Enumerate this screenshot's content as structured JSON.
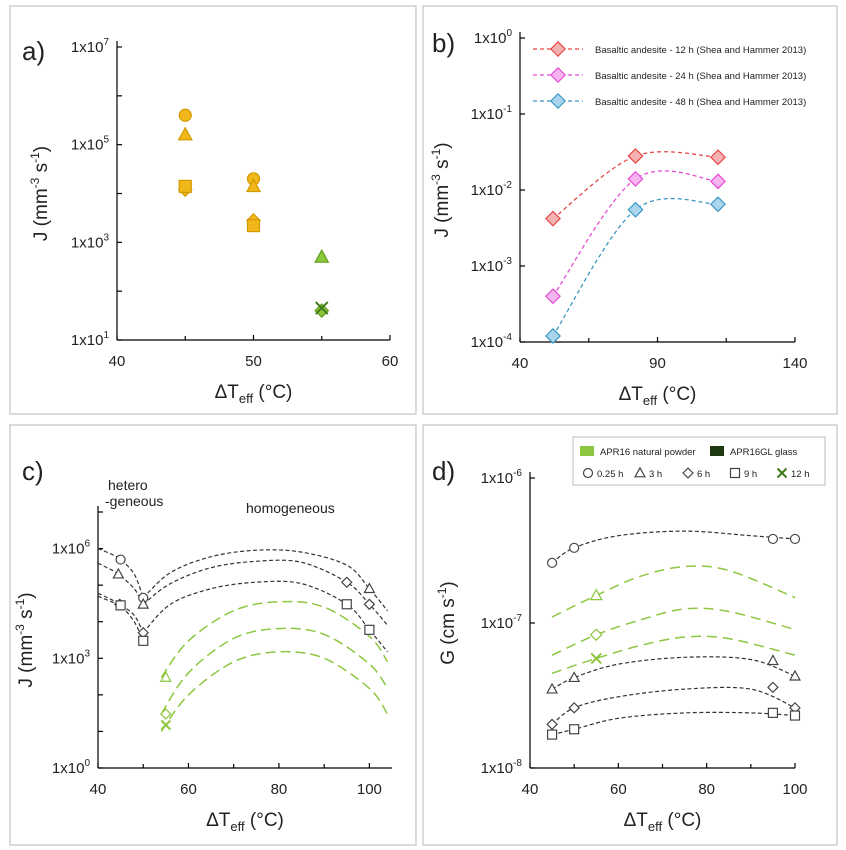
{
  "chart_data": [
    {
      "panel": "a)",
      "type": "scatter",
      "xlabel": "ΔT",
      "xlabel_sub": "eff",
      "xlabel_unit": " (°C)",
      "ylabel": "J (mm",
      "ylabel_sup1": "-3",
      "ylabel_mid": " s",
      "ylabel_sup2": "-1",
      "ylabel_end": ")",
      "xlim": [
        40,
        60
      ],
      "ylim_log10": [
        1,
        7
      ],
      "yscale": "log",
      "xticks": [
        40,
        50,
        60
      ],
      "yticks": [
        {
          "exp": 1,
          "label": "1x10",
          "sup": "1"
        },
        {
          "exp": 3,
          "label": "1x10",
          "sup": "3"
        },
        {
          "exp": 5,
          "label": "1x10",
          "sup": "5"
        },
        {
          "exp": 7,
          "label": "1x10",
          "sup": "7"
        }
      ],
      "series": [
        {
          "marker": "circle",
          "color": "#f2b71a",
          "stroke": "#d39a00",
          "points": [
            {
              "x": 45,
              "y": 400000
            },
            {
              "x": 50,
              "y": 20000
            }
          ]
        },
        {
          "marker": "triangle",
          "color": "#f2b71a",
          "stroke": "#d39a00",
          "points": [
            {
              "x": 45,
              "y": 160000
            },
            {
              "x": 50,
              "y": 14000
            }
          ]
        },
        {
          "marker": "diamond",
          "color": "#f2b71a",
          "stroke": "#d39a00",
          "points": [
            {
              "x": 45,
              "y": 12000
            },
            {
              "x": 50,
              "y": 2800
            }
          ]
        },
        {
          "marker": "square",
          "color": "#f2b71a",
          "stroke": "#d39a00",
          "points": [
            {
              "x": 45,
              "y": 14000
            },
            {
              "x": 50,
              "y": 2200
            }
          ]
        },
        {
          "marker": "triangle",
          "color": "#8dc63f",
          "stroke": "#5f9d1a",
          "points": [
            {
              "x": 55,
              "y": 500
            }
          ]
        },
        {
          "marker": "diamond",
          "color": "#8dc63f",
          "stroke": "#5f9d1a",
          "points": [
            {
              "x": 55,
              "y": 40
            }
          ]
        },
        {
          "marker": "x",
          "color": "#3f7a1a",
          "stroke": "#3f7a1a",
          "points": [
            {
              "x": 55,
              "y": 45
            }
          ]
        }
      ]
    },
    {
      "panel": "b)",
      "type": "line",
      "xlabel": "ΔT",
      "xlabel_sub": "eff",
      "xlabel_unit": " (°C)",
      "ylabel": "J (mm",
      "ylabel_sup1": "-3",
      "ylabel_mid": " s",
      "ylabel_sup2": "-1",
      "ylabel_end": ")",
      "xlim": [
        40,
        140
      ],
      "ylim_log10": [
        -4,
        0
      ],
      "yscale": "log",
      "xticks": [
        40,
        90,
        140
      ],
      "yticks": [
        {
          "exp": -4,
          "label": "1x10",
          "sup": "-4"
        },
        {
          "exp": -3,
          "label": "1x10",
          "sup": "-3"
        },
        {
          "exp": -2,
          "label": "1x10",
          "sup": "-2"
        },
        {
          "exp": -1,
          "label": "1x10",
          "sup": "-1"
        },
        {
          "exp": 0,
          "label": "1x10",
          "sup": "0"
        }
      ],
      "legend_position": "top-right",
      "series": [
        {
          "name": "Basaltic andesite - 12 h (Shea and Hammer 2013)",
          "color": "#e84646",
          "fill": "#f6b2b2",
          "x": [
            52,
            82,
            112
          ],
          "y": [
            0.0042,
            0.028,
            0.027
          ]
        },
        {
          "name": "Basaltic andesite - 24 h (Shea and Hammer 2013)",
          "color": "#e64ad3",
          "fill": "#f4b4ee",
          "x": [
            52,
            82,
            112
          ],
          "y": [
            0.0004,
            0.014,
            0.013
          ]
        },
        {
          "name": "Basaltic andesite - 48 h (Shea and Hammer 2013)",
          "color": "#3b96c4",
          "fill": "#a9d6ec",
          "x": [
            52,
            82,
            112
          ],
          "y": [
            0.00012,
            0.0055,
            0.0065
          ]
        }
      ]
    },
    {
      "panel": "c)",
      "type": "scatter",
      "xlabel": "ΔT",
      "xlabel_sub": "eff",
      "xlabel_unit": " (°C)",
      "ylabel": "J (mm",
      "ylabel_sup1": "-3",
      "ylabel_mid": " s",
      "ylabel_sup2": "-1",
      "ylabel_end": ")",
      "xlim": [
        40,
        105
      ],
      "ylim_log10": [
        0,
        7
      ],
      "yscale": "log",
      "xticks": [
        40,
        60,
        80,
        100
      ],
      "yticks": [
        {
          "exp": 0,
          "label": "1x10",
          "sup": "0"
        },
        {
          "exp": 3,
          "label": "1x10",
          "sup": "3"
        },
        {
          "exp": 6,
          "label": "1x10",
          "sup": "6"
        }
      ],
      "annotations": {
        "heterogeneous_line1": "hetero",
        "heterogeneous_line2": "-geneous",
        "homogeneous": "homogeneous"
      },
      "black_points": [
        {
          "marker": "circle",
          "x": 45,
          "y": 500000
        },
        {
          "marker": "circle",
          "x": 50,
          "y": 45000
        },
        {
          "marker": "triangle",
          "x": 44.5,
          "y": 200000
        },
        {
          "marker": "triangle",
          "x": 50,
          "y": 30000
        },
        {
          "marker": "triangle",
          "x": 100,
          "y": 80000
        },
        {
          "marker": "diamond",
          "x": 44.8,
          "y": 30000
        },
        {
          "marker": "diamond",
          "x": 50,
          "y": 5000
        },
        {
          "marker": "diamond",
          "x": 95,
          "y": 120000
        },
        {
          "marker": "diamond",
          "x": 100,
          "y": 30000
        },
        {
          "marker": "square",
          "x": 45,
          "y": 28000
        },
        {
          "marker": "square",
          "x": 50,
          "y": 3000
        },
        {
          "marker": "square",
          "x": 95,
          "y": 30000
        },
        {
          "marker": "square",
          "x": 100,
          "y": 6000
        }
      ],
      "green_points": [
        {
          "marker": "triangle",
          "x": 55,
          "y": 300
        },
        {
          "marker": "diamond",
          "x": 55,
          "y": 30
        },
        {
          "marker": "x",
          "x": 55,
          "y": 15
        }
      ],
      "black_hetero_curves": [
        [
          [
            40,
            1000000
          ],
          [
            43,
            700000
          ],
          [
            45,
            500000
          ],
          [
            48,
            200000
          ],
          [
            50,
            45000
          ]
        ],
        [
          [
            40,
            400000
          ],
          [
            42,
            300000
          ],
          [
            44.5,
            200000
          ],
          [
            48,
            80000
          ],
          [
            50,
            30000
          ]
        ],
        [
          [
            40,
            50000
          ],
          [
            43,
            35000
          ],
          [
            45,
            28000
          ],
          [
            48,
            10000
          ],
          [
            50,
            3000
          ]
        ],
        [
          [
            40,
            60000
          ],
          [
            43,
            40000
          ],
          [
            44.8,
            30000
          ],
          [
            48,
            15000
          ],
          [
            50,
            5000
          ]
        ]
      ],
      "black_homo_curves": [
        [
          [
            50,
            45000
          ],
          [
            56,
            220000
          ],
          [
            65,
            600000
          ],
          [
            75,
            900000
          ],
          [
            85,
            800000
          ],
          [
            95,
            350000
          ],
          [
            100,
            80000
          ],
          [
            104,
            20000
          ]
        ],
        [
          [
            50,
            30000
          ],
          [
            56,
            110000
          ],
          [
            65,
            300000
          ],
          [
            75,
            450000
          ],
          [
            85,
            420000
          ],
          [
            95,
            120000
          ],
          [
            100,
            30000
          ],
          [
            104,
            8000
          ]
        ],
        [
          [
            50,
            5000
          ],
          [
            56,
            30000
          ],
          [
            65,
            80000
          ],
          [
            75,
            120000
          ],
          [
            85,
            110000
          ],
          [
            95,
            30000
          ],
          [
            100,
            6000
          ],
          [
            104,
            1500
          ]
        ]
      ],
      "green_curves": [
        [
          [
            54,
            300
          ],
          [
            60,
            3000
          ],
          [
            70,
            20000
          ],
          [
            80,
            35000
          ],
          [
            90,
            25000
          ],
          [
            100,
            4000
          ],
          [
            104,
            800
          ]
        ],
        [
          [
            54,
            30
          ],
          [
            60,
            400
          ],
          [
            70,
            3500
          ],
          [
            80,
            6500
          ],
          [
            90,
            4500
          ],
          [
            100,
            700
          ],
          [
            104,
            150
          ]
        ],
        [
          [
            54,
            10
          ],
          [
            60,
            100
          ],
          [
            70,
            800
          ],
          [
            80,
            1500
          ],
          [
            90,
            1000
          ],
          [
            100,
            150
          ],
          [
            104,
            30
          ]
        ]
      ]
    },
    {
      "panel": "d)",
      "type": "scatter",
      "xlabel": "ΔT",
      "xlabel_sub": "eff",
      "xlabel_unit": " (°C)",
      "ylabel": "G (cm s",
      "ylabel_sup1": "-1",
      "ylabel_end": ")",
      "xlim": [
        40,
        100
      ],
      "ylim_log10": [
        -8,
        -6
      ],
      "yscale": "log",
      "xticks": [
        40,
        60,
        80,
        100
      ],
      "yticks": [
        {
          "exp": -8,
          "label": "1x10",
          "sup": "-8"
        },
        {
          "exp": -7,
          "label": "1x10",
          "sup": "-7"
        },
        {
          "exp": -6,
          "label": "1x10",
          "sup": "-6"
        }
      ],
      "legend_position": "top-right",
      "legend": {
        "fills": [
          {
            "name": "APR16 natural powder",
            "color": "#8dc63f"
          },
          {
            "name": "APR16GL glass",
            "color": "#1f3a12"
          }
        ],
        "markers": [
          {
            "name": "0.25 h",
            "marker": "circle"
          },
          {
            "name": "3 h",
            "marker": "triangle"
          },
          {
            "name": "6 h",
            "marker": "diamond"
          },
          {
            "name": "9 h",
            "marker": "square"
          },
          {
            "name": "12 h",
            "marker": "x"
          }
        ]
      },
      "black_points": [
        {
          "marker": "circle",
          "x": 45,
          "y": 2.6e-07
        },
        {
          "marker": "circle",
          "x": 50,
          "y": 3.3e-07
        },
        {
          "marker": "circle",
          "x": 95,
          "y": 3.8e-07
        },
        {
          "marker": "circle",
          "x": 100,
          "y": 3.8e-07
        },
        {
          "marker": "triangle",
          "x": 45,
          "y": 3.5e-08
        },
        {
          "marker": "triangle",
          "x": 50,
          "y": 4.2e-08
        },
        {
          "marker": "triangle",
          "x": 95,
          "y": 5.5e-08
        },
        {
          "marker": "triangle",
          "x": 100,
          "y": 4.3e-08
        },
        {
          "marker": "diamond",
          "x": 45,
          "y": 2e-08
        },
        {
          "marker": "diamond",
          "x": 50,
          "y": 2.6e-08
        },
        {
          "marker": "diamond",
          "x": 95,
          "y": 3.6e-08
        },
        {
          "marker": "diamond",
          "x": 100,
          "y": 2.6e-08
        },
        {
          "marker": "square",
          "x": 45,
          "y": 1.7e-08
        },
        {
          "marker": "square",
          "x": 50,
          "y": 1.85e-08
        },
        {
          "marker": "square",
          "x": 95,
          "y": 2.4e-08
        },
        {
          "marker": "square",
          "x": 100,
          "y": 2.3e-08
        }
      ],
      "green_points": [
        {
          "marker": "triangle",
          "x": 55,
          "y": 1.55e-07
        },
        {
          "marker": "diamond",
          "x": 55,
          "y": 8.3e-08
        },
        {
          "marker": "x",
          "x": 55,
          "y": 5.7e-08
        }
      ],
      "black_curves": [
        [
          [
            45,
            2.6e-07
          ],
          [
            50,
            3.3e-07
          ],
          [
            60,
            4e-07
          ],
          [
            75,
            4.3e-07
          ],
          [
            90,
            4e-07
          ],
          [
            100,
            3.8e-07
          ]
        ],
        [
          [
            45,
            3.5e-08
          ],
          [
            50,
            4.2e-08
          ],
          [
            60,
            5.2e-08
          ],
          [
            75,
            5.8e-08
          ],
          [
            90,
            5.6e-08
          ],
          [
            100,
            4.3e-08
          ]
        ],
        [
          [
            45,
            2e-08
          ],
          [
            50,
            2.6e-08
          ],
          [
            60,
            3.1e-08
          ],
          [
            75,
            3.5e-08
          ],
          [
            90,
            3.5e-08
          ],
          [
            100,
            2.6e-08
          ]
        ],
        [
          [
            45,
            1.7e-08
          ],
          [
            50,
            1.85e-08
          ],
          [
            60,
            2.2e-08
          ],
          [
            75,
            2.4e-08
          ],
          [
            90,
            2.4e-08
          ],
          [
            100,
            2.3e-08
          ]
        ]
      ],
      "green_curves": [
        [
          [
            45,
            1.1e-07
          ],
          [
            55,
            1.55e-07
          ],
          [
            65,
            2.1e-07
          ],
          [
            75,
            2.45e-07
          ],
          [
            85,
            2.3e-07
          ],
          [
            100,
            1.5e-07
          ]
        ],
        [
          [
            45,
            6e-08
          ],
          [
            55,
            8.3e-08
          ],
          [
            65,
            1.05e-07
          ],
          [
            75,
            1.25e-07
          ],
          [
            85,
            1.2e-07
          ],
          [
            100,
            9e-08
          ]
        ],
        [
          [
            45,
            4.5e-08
          ],
          [
            55,
            5.7e-08
          ],
          [
            65,
            7e-08
          ],
          [
            75,
            8e-08
          ],
          [
            85,
            7.8e-08
          ],
          [
            100,
            6e-08
          ]
        ]
      ]
    }
  ]
}
